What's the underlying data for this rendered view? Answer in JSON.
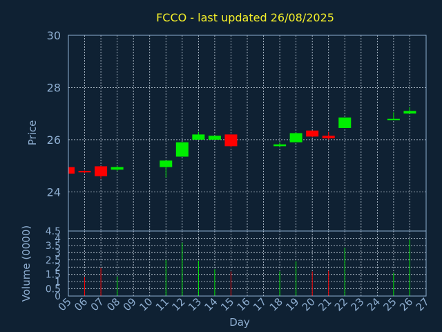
{
  "chart_data": {
    "type": "candlestick",
    "title": "FCCO - last updated 26/08/2025",
    "xlabel": "Day",
    "colors": {
      "up": "#00ee00",
      "down": "#ff0000",
      "background": "#0f2133",
      "axis": "#8eaed1",
      "title": "#f5f02a"
    },
    "x_ticks": [
      "05",
      "06",
      "07",
      "08",
      "09",
      "10",
      "11",
      "12",
      "13",
      "14",
      "15",
      "16",
      "17",
      "18",
      "19",
      "20",
      "21",
      "22",
      "23",
      "24",
      "25",
      "26",
      "27"
    ],
    "price_panel": {
      "ylabel": "Price",
      "ylim": [
        22.5,
        30
      ],
      "y_ticks": [
        "24",
        "26",
        "28",
        "30"
      ],
      "y_tick_values": [
        24,
        26,
        28,
        30
      ],
      "grid": true
    },
    "volume_panel": {
      "ylabel": "Volume (0000)",
      "ylim": [
        0,
        4.5
      ],
      "y_ticks": [
        "0",
        "0.5",
        "1",
        "1.5",
        "2",
        "2.5",
        "3",
        "3.5",
        "4",
        "4.5"
      ],
      "y_tick_values": [
        0,
        0.5,
        1,
        1.5,
        2,
        2.5,
        3,
        3.5,
        4,
        4.5
      ],
      "grid": true
    },
    "candles": [
      {
        "day": "05",
        "open": 24.95,
        "high": 24.95,
        "low": 24.65,
        "close": 24.7,
        "volume": 0
      },
      {
        "day": "06",
        "open": 24.8,
        "high": 24.82,
        "low": 24.72,
        "close": 24.75,
        "volume": 1.3
      },
      {
        "day": "07",
        "open": 24.98,
        "high": 25.0,
        "low": 24.5,
        "close": 24.6,
        "volume": 1.95
      },
      {
        "day": "08",
        "open": 24.85,
        "high": 25.0,
        "low": 24.8,
        "close": 24.95,
        "volume": 1.35
      },
      {
        "day": "11",
        "open": 24.95,
        "high": 25.2,
        "low": 24.55,
        "close": 25.2,
        "volume": 2.5
      },
      {
        "day": "12",
        "open": 25.35,
        "high": 25.9,
        "low": 25.35,
        "close": 25.9,
        "volume": 3.7
      },
      {
        "day": "13",
        "open": 26.0,
        "high": 26.3,
        "low": 26.0,
        "close": 26.2,
        "volume": 2.45
      },
      {
        "day": "14",
        "open": 26.0,
        "high": 26.15,
        "low": 26.0,
        "close": 26.15,
        "volume": 1.85
      },
      {
        "day": "15",
        "open": 26.2,
        "high": 26.2,
        "low": 25.7,
        "close": 25.75,
        "volume": 1.7
      },
      {
        "day": "18",
        "open": 25.75,
        "high": 25.9,
        "low": 25.72,
        "close": 25.82,
        "volume": 1.7
      },
      {
        "day": "19",
        "open": 25.9,
        "high": 26.28,
        "low": 25.9,
        "close": 26.25,
        "volume": 2.4
      },
      {
        "day": "20",
        "open": 26.35,
        "high": 26.35,
        "low": 26.1,
        "close": 26.12,
        "volume": 1.7
      },
      {
        "day": "21",
        "open": 26.15,
        "high": 26.3,
        "low": 26.0,
        "close": 26.05,
        "volume": 1.75
      },
      {
        "day": "22",
        "open": 26.45,
        "high": 26.85,
        "low": 26.45,
        "close": 26.85,
        "volume": 3.35
      },
      {
        "day": "25",
        "open": 26.75,
        "high": 27.05,
        "low": 26.75,
        "close": 26.8,
        "volume": 1.6
      },
      {
        "day": "26",
        "open": 27.0,
        "high": 27.25,
        "low": 27.0,
        "close": 27.1,
        "volume": 3.9
      }
    ]
  }
}
